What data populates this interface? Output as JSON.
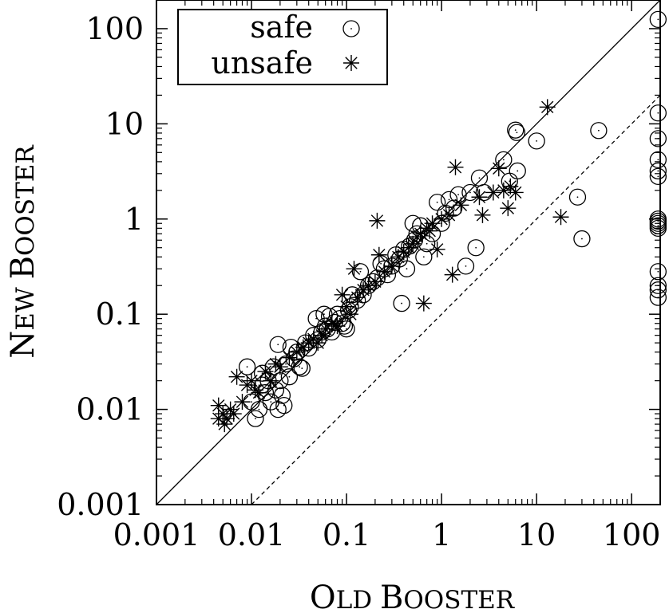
{
  "chart_data": {
    "type": "scatter",
    "title": "",
    "xlabel": {
      "first": "O",
      "rest": "LD ",
      "first2": "B",
      "rest2": "OOSTER"
    },
    "ylabel": {
      "first": "N",
      "rest": "EW ",
      "first2": "B",
      "rest2": "OOSTER"
    },
    "xscale": "log",
    "yscale": "log",
    "xlim": [
      0.001,
      200
    ],
    "ylim": [
      0.001,
      200
    ],
    "xticks": [
      {
        "value": 0.001,
        "label": "0.001"
      },
      {
        "value": 0.01,
        "label": "0.01"
      },
      {
        "value": 0.1,
        "label": "0.1"
      },
      {
        "value": 1,
        "label": "1"
      },
      {
        "value": 10,
        "label": "10"
      },
      {
        "value": 100,
        "label": "100"
      }
    ],
    "yticks": [
      {
        "value": 0.001,
        "label": "0.001"
      },
      {
        "value": 0.01,
        "label": "0.01"
      },
      {
        "value": 0.1,
        "label": "0.1"
      },
      {
        "value": 1,
        "label": "1"
      },
      {
        "value": 10,
        "label": "10"
      },
      {
        "value": 100,
        "label": "100"
      }
    ],
    "grid": false,
    "legend_position": "top-left",
    "reference_lines": [
      {
        "style": "solid",
        "ratio": 1
      },
      {
        "style": "dashed",
        "ratio": 0.1
      }
    ],
    "series": [
      {
        "name": "safe",
        "marker": "circle-dot",
        "points": [
          [
            0.009,
            0.028
          ],
          [
            0.01,
            0.012
          ],
          [
            0.011,
            0.008
          ],
          [
            0.012,
            0.01
          ],
          [
            0.013,
            0.024
          ],
          [
            0.013,
            0.018
          ],
          [
            0.014,
            0.015
          ],
          [
            0.015,
            0.02
          ],
          [
            0.016,
            0.012
          ],
          [
            0.017,
            0.028
          ],
          [
            0.018,
            0.016
          ],
          [
            0.019,
            0.01
          ],
          [
            0.019,
            0.048
          ],
          [
            0.02,
            0.02
          ],
          [
            0.021,
            0.014
          ],
          [
            0.022,
            0.011
          ],
          [
            0.023,
            0.03
          ],
          [
            0.025,
            0.022
          ],
          [
            0.026,
            0.045
          ],
          [
            0.028,
            0.034
          ],
          [
            0.03,
            0.04
          ],
          [
            0.032,
            0.028
          ],
          [
            0.034,
            0.027
          ],
          [
            0.037,
            0.05
          ],
          [
            0.04,
            0.044
          ],
          [
            0.045,
            0.06
          ],
          [
            0.048,
            0.09
          ],
          [
            0.05,
            0.054
          ],
          [
            0.055,
            0.065
          ],
          [
            0.058,
            0.1
          ],
          [
            0.06,
            0.075
          ],
          [
            0.063,
            0.07
          ],
          [
            0.066,
            0.095
          ],
          [
            0.07,
            0.065
          ],
          [
            0.075,
            0.082
          ],
          [
            0.08,
            0.1
          ],
          [
            0.085,
            0.09
          ],
          [
            0.09,
            0.08
          ],
          [
            0.095,
            0.075
          ],
          [
            0.1,
            0.07
          ],
          [
            0.105,
            0.11
          ],
          [
            0.11,
            0.12
          ],
          [
            0.115,
            0.16
          ],
          [
            0.13,
            0.14
          ],
          [
            0.14,
            0.28
          ],
          [
            0.15,
            0.16
          ],
          [
            0.17,
            0.2
          ],
          [
            0.19,
            0.22
          ],
          [
            0.21,
            0.24
          ],
          [
            0.23,
            0.34
          ],
          [
            0.25,
            0.3
          ],
          [
            0.27,
            0.26
          ],
          [
            0.3,
            0.32
          ],
          [
            0.33,
            0.42
          ],
          [
            0.36,
            0.38
          ],
          [
            0.38,
            0.13
          ],
          [
            0.4,
            0.48
          ],
          [
            0.43,
            0.3
          ],
          [
            0.46,
            0.52
          ],
          [
            0.5,
            0.9
          ],
          [
            0.52,
            0.6
          ],
          [
            0.55,
            0.7
          ],
          [
            0.6,
            0.85
          ],
          [
            0.65,
            0.4
          ],
          [
            0.7,
            0.55
          ],
          [
            0.8,
            0.7
          ],
          [
            0.9,
            1.5
          ],
          [
            1.0,
            0.9
          ],
          [
            1.1,
            1.15
          ],
          [
            1.2,
            1.6
          ],
          [
            1.35,
            1.3
          ],
          [
            1.5,
            1.8
          ],
          [
            1.8,
            0.32
          ],
          [
            2.0,
            1.9
          ],
          [
            2.3,
            0.5
          ],
          [
            2.5,
            2.7
          ],
          [
            2.8,
            1.9
          ],
          [
            4.5,
            4.2
          ],
          [
            5.2,
            2.5
          ],
          [
            6.0,
            8.6
          ],
          [
            6.2,
            8.1
          ],
          [
            6.3,
            3.2
          ],
          [
            10,
            6.6
          ],
          [
            45,
            8.5
          ],
          [
            27,
            1.7
          ],
          [
            30,
            0.62
          ],
          [
            190,
            125
          ],
          [
            190,
            13
          ],
          [
            190,
            7
          ],
          [
            190,
            4.2
          ],
          [
            190,
            3.2
          ],
          [
            190,
            2.8
          ],
          [
            190,
            1.0
          ],
          [
            190,
            0.95
          ],
          [
            190,
            0.9
          ],
          [
            190,
            0.85
          ],
          [
            190,
            0.8
          ],
          [
            190,
            0.28
          ],
          [
            190,
            0.2
          ],
          [
            190,
            0.18
          ],
          [
            190,
            0.15
          ]
        ]
      },
      {
        "name": "unsafe",
        "marker": "star",
        "points": [
          [
            0.0045,
            0.011
          ],
          [
            0.0045,
            0.008
          ],
          [
            0.005,
            0.009
          ],
          [
            0.0052,
            0.007
          ],
          [
            0.0055,
            0.008
          ],
          [
            0.006,
            0.01
          ],
          [
            0.0065,
            0.009
          ],
          [
            0.007,
            0.022
          ],
          [
            0.008,
            0.012
          ],
          [
            0.009,
            0.018
          ],
          [
            0.01,
            0.02
          ],
          [
            0.011,
            0.016
          ],
          [
            0.012,
            0.015
          ],
          [
            0.014,
            0.025
          ],
          [
            0.016,
            0.02
          ],
          [
            0.018,
            0.03
          ],
          [
            0.02,
            0.028
          ],
          [
            0.025,
            0.035
          ],
          [
            0.03,
            0.04
          ],
          [
            0.035,
            0.045
          ],
          [
            0.04,
            0.05
          ],
          [
            0.045,
            0.055
          ],
          [
            0.05,
            0.05
          ],
          [
            0.055,
            0.06
          ],
          [
            0.06,
            0.07
          ],
          [
            0.07,
            0.08
          ],
          [
            0.08,
            0.075
          ],
          [
            0.09,
            0.16
          ],
          [
            0.1,
            0.12
          ],
          [
            0.11,
            0.1
          ],
          [
            0.12,
            0.3
          ],
          [
            0.13,
            0.15
          ],
          [
            0.15,
            0.18
          ],
          [
            0.17,
            0.2
          ],
          [
            0.2,
            0.22
          ],
          [
            0.21,
            0.96
          ],
          [
            0.22,
            0.42
          ],
          [
            0.25,
            0.28
          ],
          [
            0.3,
            0.32
          ],
          [
            0.35,
            0.4
          ],
          [
            0.4,
            0.45
          ],
          [
            0.45,
            0.5
          ],
          [
            0.5,
            0.55
          ],
          [
            0.55,
            0.65
          ],
          [
            0.6,
            0.7
          ],
          [
            0.65,
            0.13
          ],
          [
            0.7,
            0.8
          ],
          [
            0.75,
            0.75
          ],
          [
            0.8,
            0.9
          ],
          [
            0.9,
            0.48
          ],
          [
            1.0,
            1.0
          ],
          [
            1.2,
            1.1
          ],
          [
            1.3,
            0.26
          ],
          [
            1.4,
            3.5
          ],
          [
            1.6,
            1.4
          ],
          [
            2.5,
            1.7
          ],
          [
            2.7,
            1.1
          ],
          [
            3.5,
            1.9
          ],
          [
            4.0,
            3.4
          ],
          [
            4.5,
            2.0
          ],
          [
            5.0,
            1.3
          ],
          [
            5.3,
            2.2
          ],
          [
            6.0,
            1.9
          ],
          [
            13,
            15
          ],
          [
            18,
            1.05
          ]
        ]
      }
    ]
  }
}
